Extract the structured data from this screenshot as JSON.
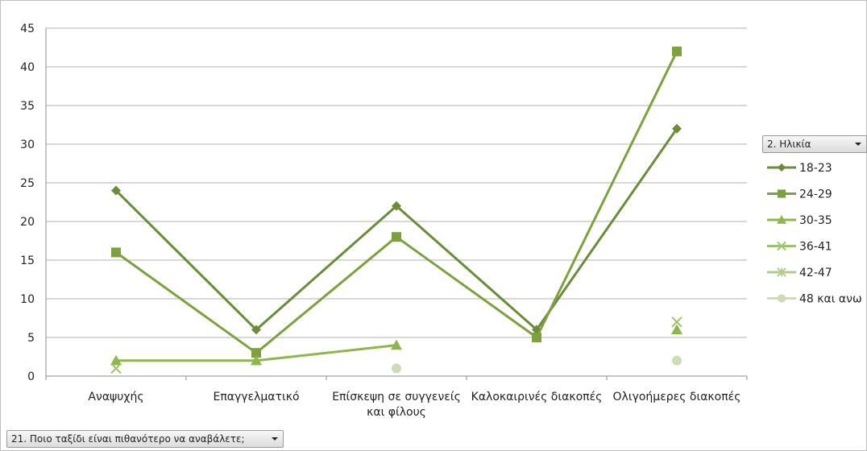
{
  "colors": {
    "s1": "#6b8c38",
    "s2": "#7ea13f",
    "s3": "#8fb64b",
    "s4": "#9fc16a",
    "s5": "#b2cc8a",
    "s6": "#cddcb6",
    "grid": "#b0b0b0",
    "axis": "#8c8c8c"
  },
  "filters": {
    "series_label": "2. Ηλικία",
    "category_label": "21. Ποιο ταξίδι είναι πιθανότερο να αναβάλετε;"
  },
  "chart_data": {
    "type": "line",
    "title": "",
    "xlabel": "",
    "ylabel": "",
    "ylim": [
      0,
      45
    ],
    "yticks": [
      0,
      5,
      10,
      15,
      20,
      25,
      30,
      35,
      40,
      45
    ],
    "grid": true,
    "legend_position": "right",
    "categories": [
      "Αναψυχής",
      "Επαγγελματικό",
      "Επίσκεψη σε συγγενείς και φίλους",
      "Καλοκαιρινές διακοπές",
      "Ολιγοήμερες διακοπές"
    ],
    "category_lines": [
      [
        "Αναψυχής"
      ],
      [
        "Επαγγελματικό"
      ],
      [
        "Επίσκεψη σε συγγενείς",
        "και φίλους"
      ],
      [
        "Καλοκαιρινές διακοπές"
      ],
      [
        "Ολιγοήμερες διακοπές"
      ]
    ],
    "series": [
      {
        "name": "18-23",
        "marker": "diamond",
        "color": "#6b8c38",
        "values": [
          24,
          6,
          22,
          6,
          32
        ]
      },
      {
        "name": "24-29",
        "marker": "square",
        "color": "#7ea13f",
        "values": [
          16,
          3,
          18,
          5,
          42
        ]
      },
      {
        "name": "30-35",
        "marker": "triangle",
        "color": "#8fb64b",
        "values": [
          2,
          2,
          4,
          null,
          6
        ]
      },
      {
        "name": "36-41",
        "marker": "x",
        "color": "#9fc16a",
        "values": [
          1,
          null,
          null,
          null,
          7
        ]
      },
      {
        "name": "42-47",
        "marker": "star",
        "color": "#b2cc8a",
        "values": [
          null,
          null,
          null,
          null,
          null
        ]
      },
      {
        "name": "48 και ανω",
        "marker": "circle",
        "color": "#cddcb6",
        "values": [
          null,
          null,
          1,
          null,
          2
        ]
      }
    ]
  }
}
